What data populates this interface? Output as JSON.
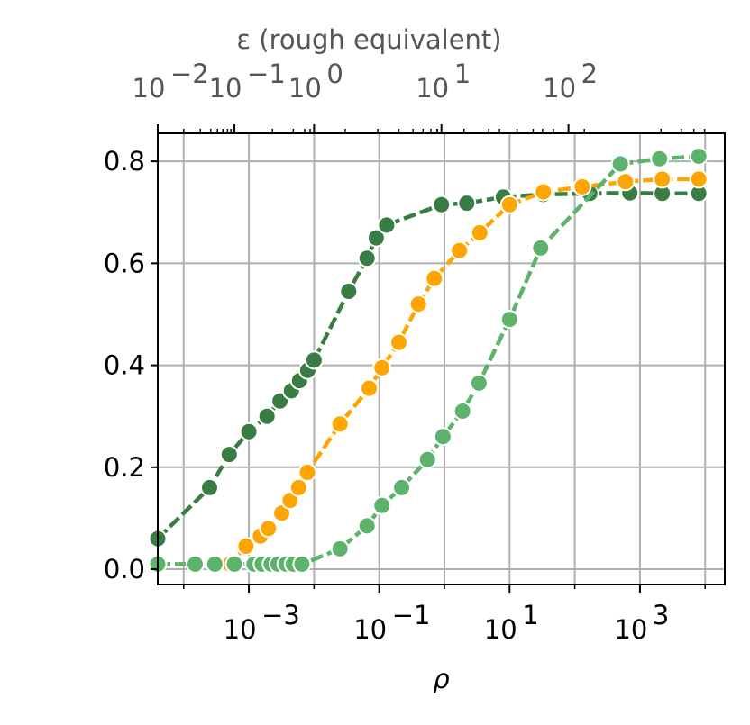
{
  "chart_data": {
    "type": "line",
    "xlabel": "ρ",
    "top_xlabel": "ε (rough equivalent)",
    "xscale": "log",
    "xlim": [
      4e-05,
      20000
    ],
    "ylim": [
      -0.03,
      0.855
    ],
    "grid": true,
    "legend": "none",
    "yticks": [
      {
        "v": 0.0,
        "t": "0.0"
      },
      {
        "v": 0.2,
        "t": "0.2"
      },
      {
        "v": 0.4,
        "t": "0.4"
      },
      {
        "v": 0.6,
        "t": "0.6"
      },
      {
        "v": 0.8,
        "t": "0.8"
      }
    ],
    "xticks": [
      {
        "v": 0.001,
        "base": "10",
        "exp": "−3"
      },
      {
        "v": 0.1,
        "base": "10",
        "exp": "−1"
      },
      {
        "v": 10,
        "base": "10",
        "exp": "1"
      },
      {
        "v": 1000,
        "base": "10",
        "exp": "3"
      }
    ],
    "top_axis": {
      "scale": "log",
      "ticks": [
        {
          "v": 0.01,
          "rho": 1.7e-05,
          "base": "10",
          "exp": "−2"
        },
        {
          "v": 0.1,
          "rho": 0.0006,
          "base": "10",
          "exp": "−1"
        },
        {
          "v": 1,
          "rho": 0.01,
          "base": "10",
          "exp": "0"
        },
        {
          "v": 10,
          "rho": 0.9,
          "base": "10",
          "exp": "1"
        },
        {
          "v": 100,
          "rho": 80,
          "base": "10",
          "exp": "2"
        }
      ],
      "minor_ticks_rho": [
        0.0001,
        0.00018,
        0.00026,
        0.00033,
        0.0004,
        0.00047,
        0.00053,
        0.0023,
        0.0048,
        0.0072,
        0.0087,
        0.03,
        0.095,
        0.2,
        0.33,
        0.47,
        0.62,
        0.77,
        0.78,
        2,
        4.8,
        7,
        13,
        23,
        32,
        47,
        140,
        2100,
        4300,
        6700,
        9800
      ]
    },
    "series": [
      {
        "color": "#3a7d44",
        "points": [
          [
            4e-05,
            0.06
          ],
          [
            0.00025,
            0.16
          ],
          [
            0.0005,
            0.225
          ],
          [
            0.001,
            0.27
          ],
          [
            0.0019,
            0.3
          ],
          [
            0.003,
            0.33
          ],
          [
            0.0045,
            0.35
          ],
          [
            0.006,
            0.37
          ],
          [
            0.008,
            0.39
          ],
          [
            0.01,
            0.41
          ],
          [
            0.034,
            0.545
          ],
          [
            0.065,
            0.61
          ],
          [
            0.09,
            0.65
          ],
          [
            0.13,
            0.675
          ],
          [
            0.9,
            0.715
          ],
          [
            2.2,
            0.718
          ],
          [
            8,
            0.73
          ],
          [
            33,
            0.735
          ],
          [
            170,
            0.737
          ],
          [
            700,
            0.738
          ],
          [
            2200,
            0.737
          ],
          [
            8000,
            0.737
          ]
        ]
      },
      {
        "color": "#ffa500",
        "points": [
          [
            4e-05,
            0.01
          ],
          [
            0.00015,
            0.01
          ],
          [
            0.0003,
            0.01
          ],
          [
            0.00052,
            0.01
          ],
          [
            0.0009,
            0.045
          ],
          [
            0.0015,
            0.065
          ],
          [
            0.002,
            0.08
          ],
          [
            0.0032,
            0.11
          ],
          [
            0.0043,
            0.135
          ],
          [
            0.0058,
            0.16
          ],
          [
            0.0079,
            0.19
          ],
          [
            0.025,
            0.285
          ],
          [
            0.07,
            0.355
          ],
          [
            0.11,
            0.395
          ],
          [
            0.2,
            0.445
          ],
          [
            0.4,
            0.52
          ],
          [
            0.7,
            0.57
          ],
          [
            1.7,
            0.625
          ],
          [
            3.5,
            0.66
          ],
          [
            10,
            0.715
          ],
          [
            33,
            0.74
          ],
          [
            130,
            0.75
          ],
          [
            600,
            0.76
          ],
          [
            2200,
            0.765
          ],
          [
            8000,
            0.765
          ]
        ]
      },
      {
        "color": "#5db36c",
        "points": [
          [
            4e-05,
            0.01
          ],
          [
            0.00015,
            0.01
          ],
          [
            0.0003,
            0.01
          ],
          [
            0.0006,
            0.01
          ],
          [
            0.0012,
            0.01
          ],
          [
            0.0016,
            0.01
          ],
          [
            0.0022,
            0.01
          ],
          [
            0.0028,
            0.01
          ],
          [
            0.0037,
            0.01
          ],
          [
            0.0048,
            0.01
          ],
          [
            0.0065,
            0.01
          ],
          [
            0.025,
            0.04
          ],
          [
            0.065,
            0.085
          ],
          [
            0.11,
            0.125
          ],
          [
            0.22,
            0.16
          ],
          [
            0.55,
            0.215
          ],
          [
            0.95,
            0.26
          ],
          [
            1.9,
            0.31
          ],
          [
            3.4,
            0.365
          ],
          [
            10,
            0.49
          ],
          [
            30,
            0.63
          ],
          [
            500,
            0.795
          ],
          [
            2000,
            0.805
          ],
          [
            8000,
            0.81
          ]
        ]
      }
    ]
  }
}
